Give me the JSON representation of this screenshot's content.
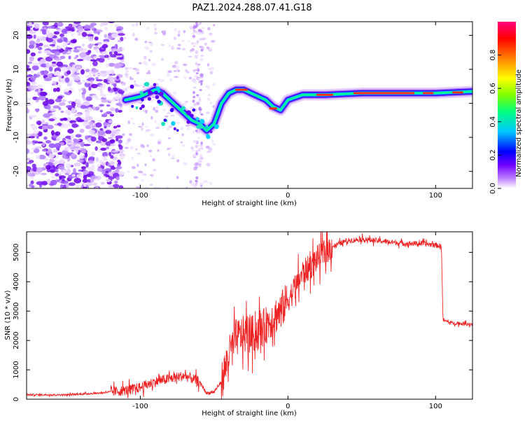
{
  "title": "PAZ1.2024.288.07.41.G18",
  "chart_data": [
    {
      "type": "heatmap",
      "xlabel": "Height of straight line (km)",
      "ylabel": "Frequency (Hz)",
      "xlim": [
        -177,
        125
      ],
      "ylim": [
        -25,
        24
      ],
      "x_ticks": [
        {
          "value": -100,
          "label": "-100"
        },
        {
          "value": 0,
          "label": "0"
        },
        {
          "value": 100,
          "label": "100"
        }
      ],
      "y_ticks": [
        {
          "value": 20,
          "label": "20"
        },
        {
          "value": 10,
          "label": "10"
        },
        {
          "value": 0,
          "label": "0"
        },
        {
          "value": -10,
          "label": "-10"
        },
        {
          "value": -20,
          "label": "-20"
        }
      ],
      "colorbar": {
        "label": "Normalized spectral amplitude",
        "range": [
          0,
          1
        ],
        "ticks": [
          {
            "value": 0.0,
            "label": "0.0"
          },
          {
            "value": 0.2,
            "label": "0.2"
          },
          {
            "value": 0.4,
            "label": "0.4"
          },
          {
            "value": 0.6,
            "label": "0.6"
          },
          {
            "value": 0.8,
            "label": "0.8"
          }
        ],
        "colormap": [
          "#ffffff",
          "#c080ff",
          "#7000ff",
          "#0000ff",
          "#00c8ff",
          "#00ff80",
          "#80ff00",
          "#ffff00",
          "#ff8000",
          "#ff0000",
          "#ff0080"
        ]
      },
      "ridge": {
        "x": [
          -110,
          -100,
          -90,
          -85,
          -80,
          -75,
          -70,
          -65,
          -60,
          -55,
          -50,
          -45,
          -40,
          -35,
          -30,
          -25,
          -20,
          -15,
          -10,
          -5,
          0,
          10,
          25,
          50,
          75,
          100,
          125
        ],
        "frequency": [
          1,
          2,
          4,
          3,
          1,
          -1,
          -3,
          -5,
          -6,
          -8,
          -6,
          0,
          3,
          4,
          4,
          3,
          2,
          1,
          -1,
          -2,
          1,
          2.5,
          2.5,
          3,
          3,
          3,
          3.5
        ]
      }
    },
    {
      "type": "line",
      "xlabel": "Height of straight line (km)",
      "ylabel": "SNR (10 * v/v)",
      "xlim": [
        -177,
        125
      ],
      "ylim": [
        0,
        5700
      ],
      "x_ticks": [
        {
          "value": -100,
          "label": "-100"
        },
        {
          "value": 0,
          "label": "0"
        },
        {
          "value": 100,
          "label": "100"
        }
      ],
      "y_ticks": [
        {
          "value": 0,
          "label": "0"
        },
        {
          "value": 1000,
          "label": "1000"
        },
        {
          "value": 2000,
          "label": "2000"
        },
        {
          "value": 3000,
          "label": "3000"
        },
        {
          "value": 4000,
          "label": "4000"
        },
        {
          "value": 5000,
          "label": "5000"
        }
      ],
      "series": [
        {
          "color": "#ee2222",
          "x": [
            -177,
            -150,
            -130,
            -110,
            -100,
            -90,
            -80,
            -70,
            -60,
            -55,
            -50,
            -45,
            -40,
            -35,
            -30,
            -25,
            -20,
            -15,
            -10,
            -5,
            0,
            5,
            10,
            15,
            20,
            25,
            30,
            40,
            50,
            60,
            70,
            80,
            90,
            100,
            104,
            105,
            110,
            125
          ],
          "y": [
            150,
            150,
            200,
            300,
            400,
            600,
            700,
            800,
            600,
            200,
            250,
            600,
            1500,
            2100,
            2200,
            2200,
            2300,
            2500,
            2800,
            3000,
            3400,
            3800,
            4300,
            4500,
            4800,
            5000,
            5200,
            5400,
            5450,
            5400,
            5350,
            5300,
            5300,
            5250,
            5200,
            2700,
            2600,
            2550
          ]
        }
      ]
    }
  ]
}
